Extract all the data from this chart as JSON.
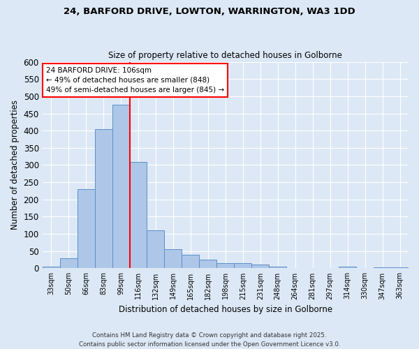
{
  "title_line1": "24, BARFORD DRIVE, LOWTON, WARRINGTON, WA3 1DD",
  "title_line2": "Size of property relative to detached houses in Golborne",
  "xlabel": "Distribution of detached houses by size in Golborne",
  "ylabel": "Number of detached properties",
  "bar_labels": [
    "33sqm",
    "50sqm",
    "66sqm",
    "83sqm",
    "99sqm",
    "116sqm",
    "132sqm",
    "149sqm",
    "165sqm",
    "182sqm",
    "198sqm",
    "215sqm",
    "231sqm",
    "248sqm",
    "264sqm",
    "281sqm",
    "297sqm",
    "314sqm",
    "330sqm",
    "347sqm",
    "363sqm"
  ],
  "bar_values": [
    5,
    30,
    230,
    405,
    475,
    310,
    110,
    55,
    40,
    25,
    15,
    15,
    10,
    5,
    0,
    0,
    0,
    4,
    0,
    3,
    3
  ],
  "bar_color": "#aec6e8",
  "bar_edge_color": "#5b8fc9",
  "red_line_x": 4.5,
  "ylim": [
    0,
    600
  ],
  "yticks": [
    0,
    50,
    100,
    150,
    200,
    250,
    300,
    350,
    400,
    450,
    500,
    550,
    600
  ],
  "annotation_text": "24 BARFORD DRIVE: 106sqm\n← 49% of detached houses are smaller (848)\n49% of semi-detached houses are larger (845) →",
  "footer_line1": "Contains HM Land Registry data © Crown copyright and database right 2025.",
  "footer_line2": "Contains public sector information licensed under the Open Government Licence v3.0.",
  "bg_color": "#dce8f5",
  "plot_bg_color": "#dce8f5",
  "grid_color": "#ffffff"
}
